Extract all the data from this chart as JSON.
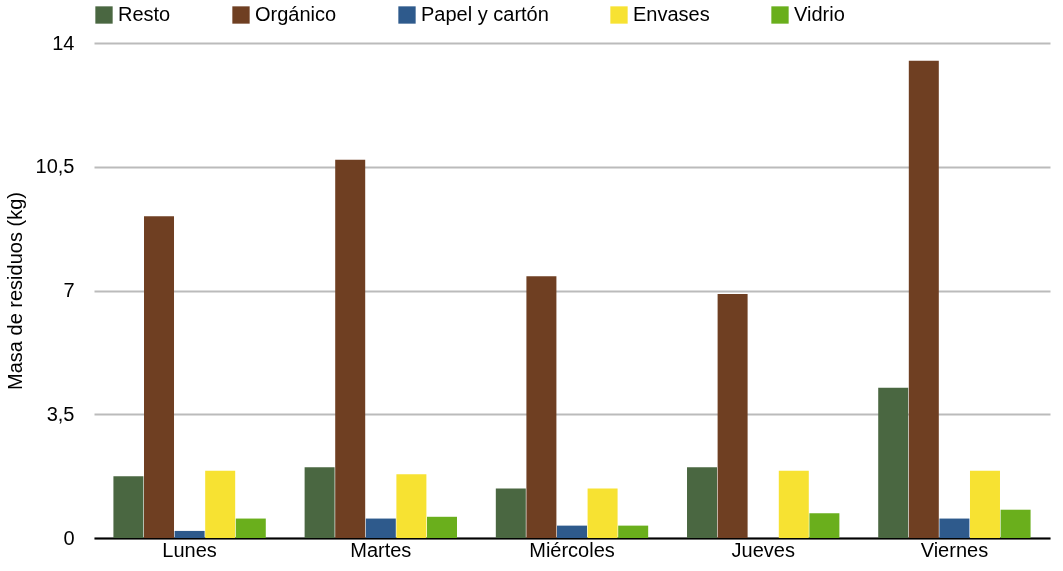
{
  "chart_data": {
    "type": "bar",
    "ylabel": "Masa de residuos (kg)",
    "categories": [
      "Lunes",
      "Martes",
      "Miércoles",
      "Jueves",
      "Viernes"
    ],
    "series": [
      {
        "name": "Resto",
        "color": "#4a6741",
        "values": [
          1.75,
          2.0,
          1.4,
          2.0,
          4.25
        ]
      },
      {
        "name": "Orgánico",
        "color": "#6f3f22",
        "values": [
          9.1,
          10.7,
          7.4,
          6.9,
          13.5
        ]
      },
      {
        "name": "Papel y cartón",
        "color": "#2e5a8c",
        "values": [
          0.2,
          0.55,
          0.35,
          0,
          0.55
        ]
      },
      {
        "name": "Envases",
        "color": "#f7e232",
        "values": [
          1.9,
          1.8,
          1.4,
          1.9,
          1.9
        ]
      },
      {
        "name": "Vidrio",
        "color": "#6aaf1c",
        "values": [
          0.55,
          0.6,
          0.35,
          0.7,
          0.8
        ]
      }
    ],
    "ylim": [
      0,
      14
    ],
    "yticks": [
      0,
      {
        "value": 3.5,
        "label": "3,5"
      },
      7,
      {
        "value": 10.5,
        "label": "10,5"
      },
      14
    ],
    "grid": "y",
    "legend": "top"
  }
}
